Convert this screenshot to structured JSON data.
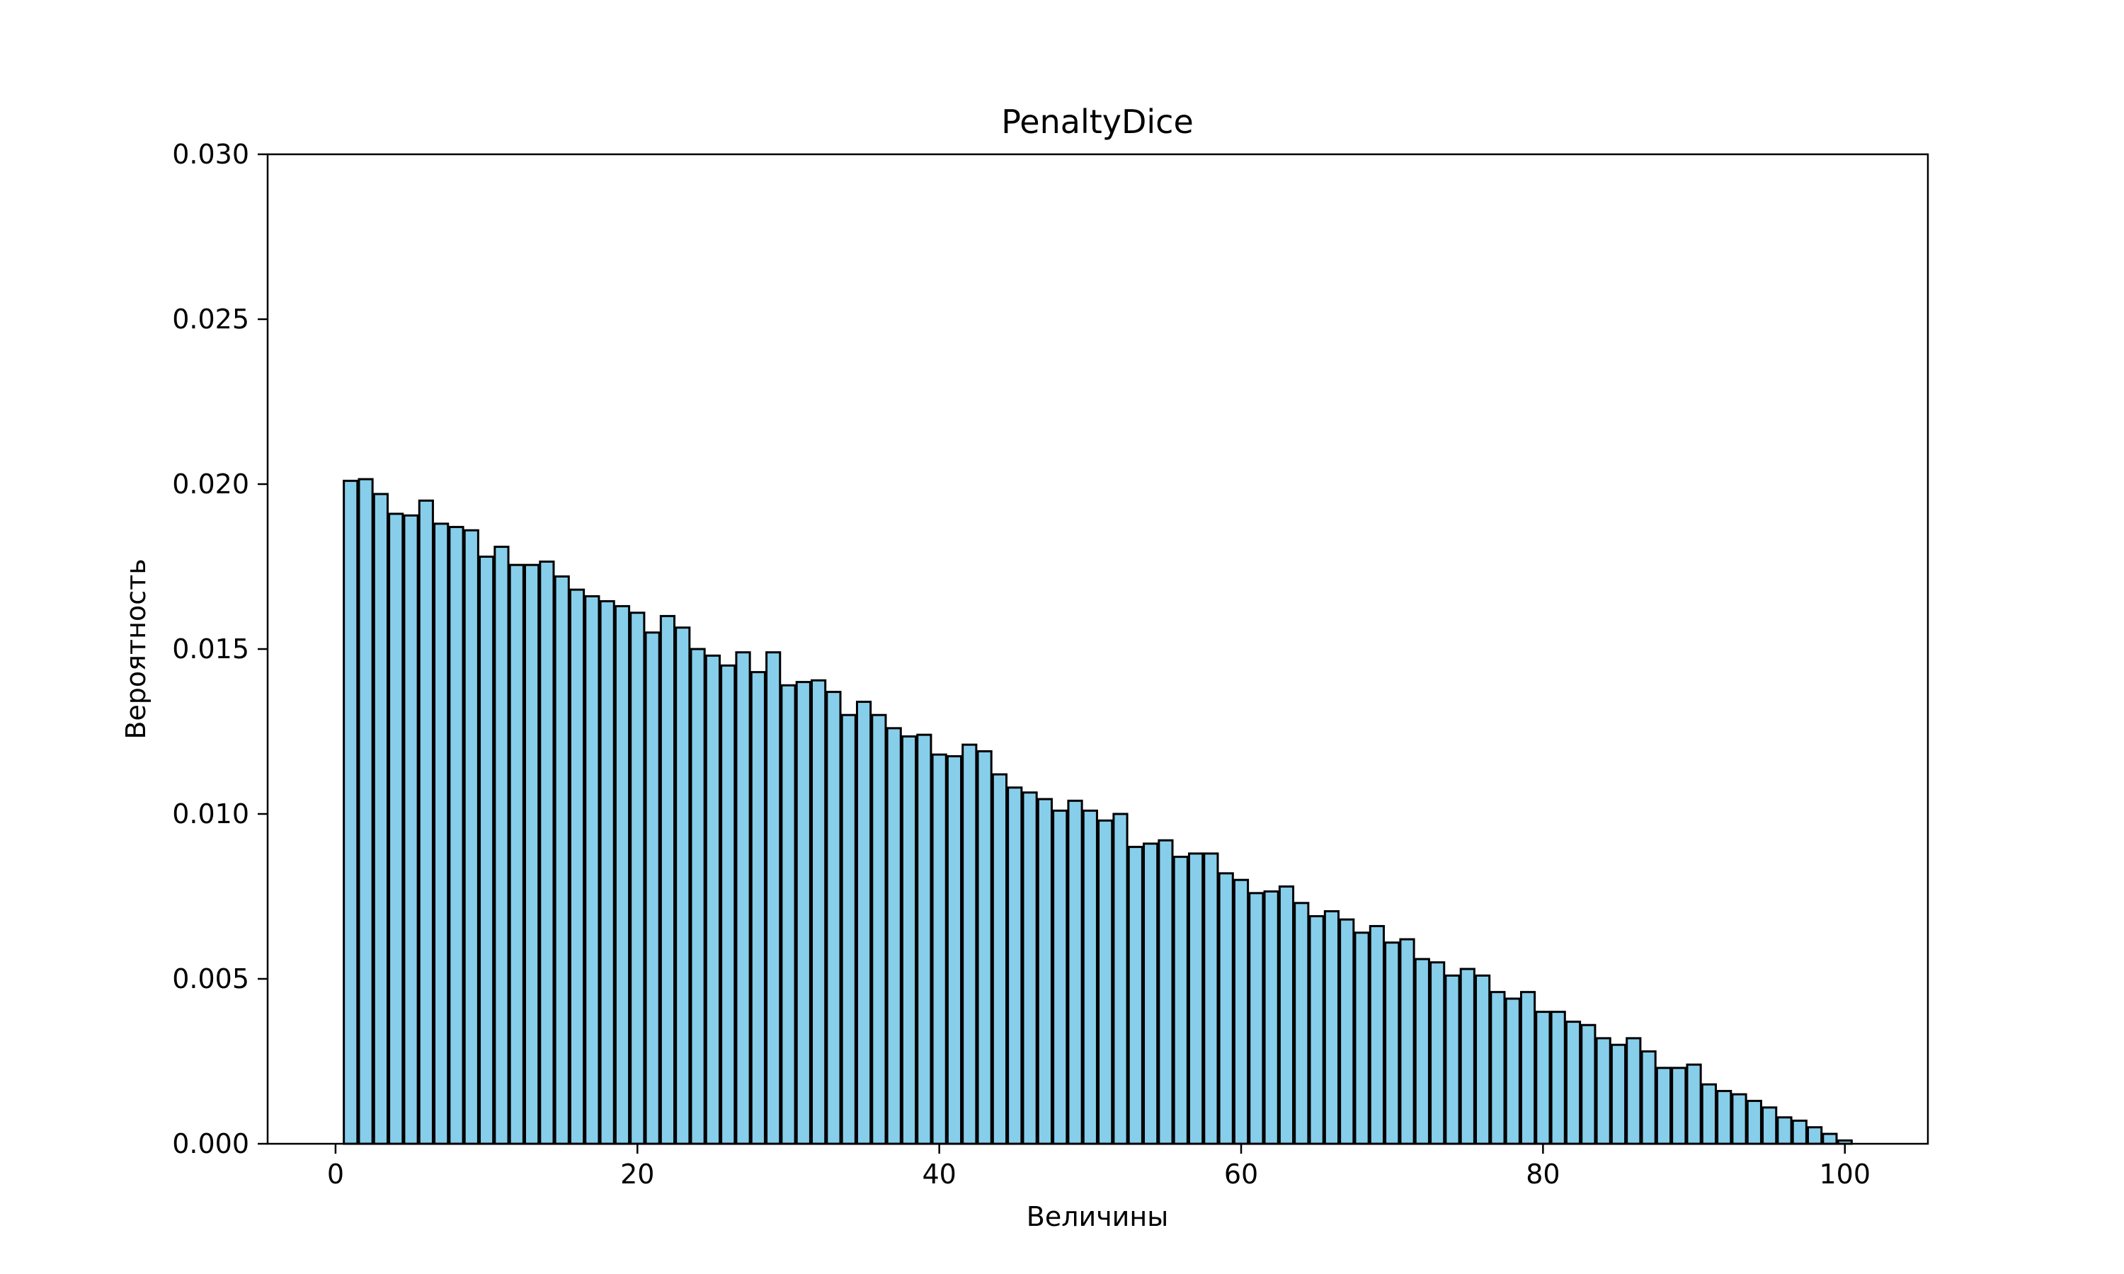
{
  "chart_data": {
    "type": "bar",
    "title": "PenaltyDice",
    "xlabel": "Величины",
    "ylabel": "Вероятность",
    "xlim": [
      -4.5,
      105.5
    ],
    "ylim": [
      0,
      0.03
    ],
    "grid": false,
    "legend": "none",
    "bar_color": "#87ceeb",
    "edge_color": "#000000",
    "x_ticks": [
      0,
      20,
      40,
      60,
      80,
      100
    ],
    "x_tick_labels": [
      "0",
      "20",
      "40",
      "60",
      "80",
      "100"
    ],
    "y_ticks": [
      0,
      0.005,
      0.01,
      0.015,
      0.02,
      0.025,
      0.03
    ],
    "y_tick_labels": [
      "0.000",
      "0.005",
      "0.010",
      "0.015",
      "0.020",
      "0.025",
      "0.030"
    ],
    "x": [
      1,
      2,
      3,
      4,
      5,
      6,
      7,
      8,
      9,
      10,
      11,
      12,
      13,
      14,
      15,
      16,
      17,
      18,
      19,
      20,
      21,
      22,
      23,
      24,
      25,
      26,
      27,
      28,
      29,
      30,
      31,
      32,
      33,
      34,
      35,
      36,
      37,
      38,
      39,
      40,
      41,
      42,
      43,
      44,
      45,
      46,
      47,
      48,
      49,
      50,
      51,
      52,
      53,
      54,
      55,
      56,
      57,
      58,
      59,
      60,
      61,
      62,
      63,
      64,
      65,
      66,
      67,
      68,
      69,
      70,
      71,
      72,
      73,
      74,
      75,
      76,
      77,
      78,
      79,
      80,
      81,
      82,
      83,
      84,
      85,
      86,
      87,
      88,
      89,
      90,
      91,
      92,
      93,
      94,
      95,
      96,
      97,
      98,
      99,
      100
    ],
    "values": [
      0.0201,
      0.02015,
      0.0197,
      0.0191,
      0.01905,
      0.0195,
      0.0188,
      0.0187,
      0.0186,
      0.0178,
      0.0181,
      0.01755,
      0.01755,
      0.01765,
      0.0172,
      0.0168,
      0.0166,
      0.01645,
      0.0163,
      0.0161,
      0.0155,
      0.016,
      0.01565,
      0.015,
      0.0148,
      0.0145,
      0.0149,
      0.0143,
      0.0149,
      0.0139,
      0.014,
      0.01405,
      0.0137,
      0.013,
      0.0134,
      0.013,
      0.0126,
      0.01235,
      0.0124,
      0.0118,
      0.01175,
      0.0121,
      0.0119,
      0.0112,
      0.0108,
      0.01065,
      0.01045,
      0.0101,
      0.0104,
      0.0101,
      0.0098,
      0.01,
      0.009,
      0.0091,
      0.0092,
      0.0087,
      0.0088,
      0.0088,
      0.0082,
      0.008,
      0.0076,
      0.00765,
      0.0078,
      0.0073,
      0.0069,
      0.00705,
      0.0068,
      0.0064,
      0.0066,
      0.0061,
      0.0062,
      0.0056,
      0.0055,
      0.0051,
      0.0053,
      0.0051,
      0.0046,
      0.0044,
      0.0046,
      0.004,
      0.004,
      0.0037,
      0.0036,
      0.0032,
      0.003,
      0.0032,
      0.0028,
      0.0023,
      0.0023,
      0.0024,
      0.0018,
      0.0016,
      0.0015,
      0.0013,
      0.0011,
      0.0008,
      0.0007,
      0.0005,
      0.0003,
      0.0001
    ]
  }
}
